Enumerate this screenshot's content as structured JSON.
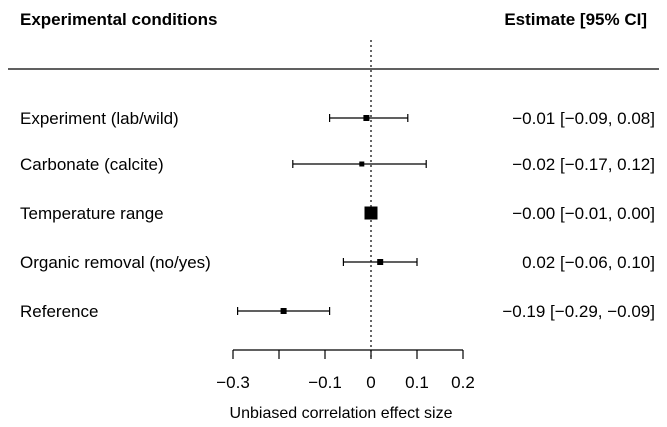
{
  "chart_data": {
    "type": "forest",
    "columns": {
      "left_header": "Experimental conditions",
      "right_header": "Estimate [95% CI]"
    },
    "xlabel": "Unbiased correlation effect size",
    "xlim": [
      -0.3,
      0.2
    ],
    "ticks": [
      -0.3,
      -0.2,
      -0.1,
      0,
      0.1,
      0.2
    ],
    "tick_labels": [
      "−0.3",
      "",
      "−0.1",
      "0",
      "0.1",
      "0.2"
    ],
    "reference_line": 0,
    "rows": [
      {
        "label": "Experiment (lab/wild)",
        "estimate": -0.01,
        "lower": -0.09,
        "upper": 0.08,
        "text_est": "−0.01",
        "text_lower": "−0.09",
        "text_upper": "0.08"
      },
      {
        "label": "Carbonate (calcite)",
        "estimate": -0.02,
        "lower": -0.17,
        "upper": 0.12,
        "text_est": "−0.02",
        "text_lower": "−0.17",
        "text_upper": "0.12"
      },
      {
        "label": "Temperature range",
        "estimate": -0.0,
        "lower": -0.01,
        "upper": 0.0,
        "text_est": "−0.00",
        "text_lower": "−0.01",
        "text_upper": "0.00"
      },
      {
        "label": "Organic removal (no/yes)",
        "estimate": 0.02,
        "lower": -0.06,
        "upper": 0.1,
        "text_est": "0.02",
        "text_lower": "−0.06",
        "text_upper": "0.10"
      },
      {
        "label": "Reference",
        "estimate": -0.19,
        "lower": -0.29,
        "upper": -0.09,
        "text_est": "−0.19",
        "text_lower": "−0.29",
        "text_upper": "−0.09"
      }
    ],
    "marker_weights": [
      0.3,
      0.2,
      1.0,
      0.3,
      0.3
    ]
  }
}
